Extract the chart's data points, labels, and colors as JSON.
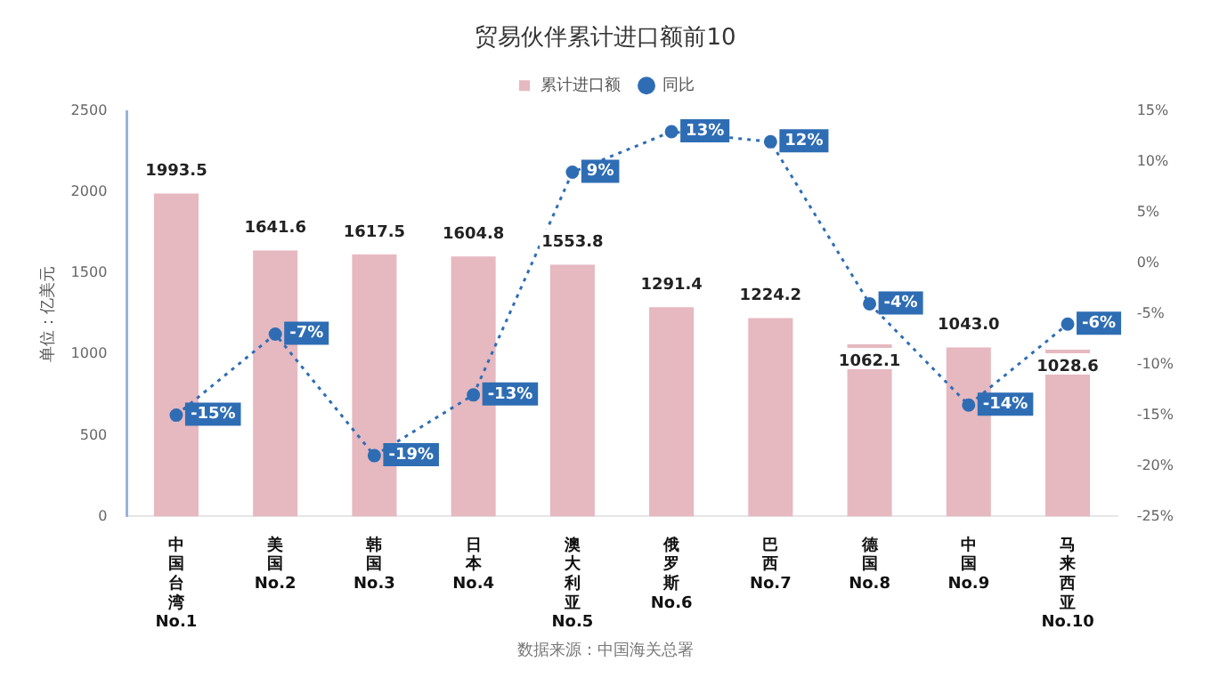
{
  "chart_data": {
    "type": "bar",
    "title": "贸易伙伴累计进口额前10",
    "categories": [
      "中国台湾\nNo.1",
      "美国\nNo.2",
      "韩国\nNo.3",
      "日本\nNo.4",
      "澳大利亚\nNo.5",
      "俄罗斯\nNo.6",
      "巴西\nNo.7",
      "德国\nNo.8",
      "中国\nNo.9",
      "马来西亚\nNo.10"
    ],
    "series": [
      {
        "name": "累计进口额",
        "color": "#e6b8c0",
        "values": [
          1993.5,
          1641.6,
          1617.5,
          1604.8,
          1553.8,
          1291.4,
          1224.2,
          1062.1,
          1043.0,
          1028.6
        ],
        "value_labels": [
          "1993.5",
          "1641.6",
          "1617.5",
          "1604.8",
          "1553.8",
          "1291.4",
          "1224.2",
          "1062.1",
          "1043.0",
          "1028.6"
        ]
      },
      {
        "name": "同比",
        "type": "line",
        "axis": "y2",
        "color": "#2e6db4",
        "marker": "circle",
        "line_style": "dotted",
        "values": [
          -15,
          -7,
          -19,
          -13,
          9,
          13,
          12,
          -4,
          -14,
          -6
        ],
        "value_labels": [
          "-15%",
          "-7%",
          "-19%",
          "-13%",
          "9%",
          "13%",
          "12%",
          "-4%",
          "-14%",
          "-6%"
        ]
      }
    ],
    "ylabel": "单位：亿美元",
    "ylim": [
      0,
      2500
    ],
    "yticks": [
      0,
      500,
      1000,
      1500,
      2000,
      2500
    ],
    "y2lim": [
      -25,
      15
    ],
    "y2ticks": [
      {
        "value": -25,
        "label": "-25%"
      },
      {
        "value": -20,
        "label": "-20%"
      },
      {
        "value": -15,
        "label": "-15%"
      },
      {
        "value": -10,
        "label": "-10%"
      },
      {
        "value": -5,
        "label": "-5%"
      },
      {
        "value": 0,
        "label": "0%"
      },
      {
        "value": 5,
        "label": "5%"
      },
      {
        "value": 10,
        "label": "10%"
      },
      {
        "value": 15,
        "label": "15%"
      }
    ],
    "legend": "top",
    "annotations": [
      "数据来源：中国海关总署"
    ]
  }
}
